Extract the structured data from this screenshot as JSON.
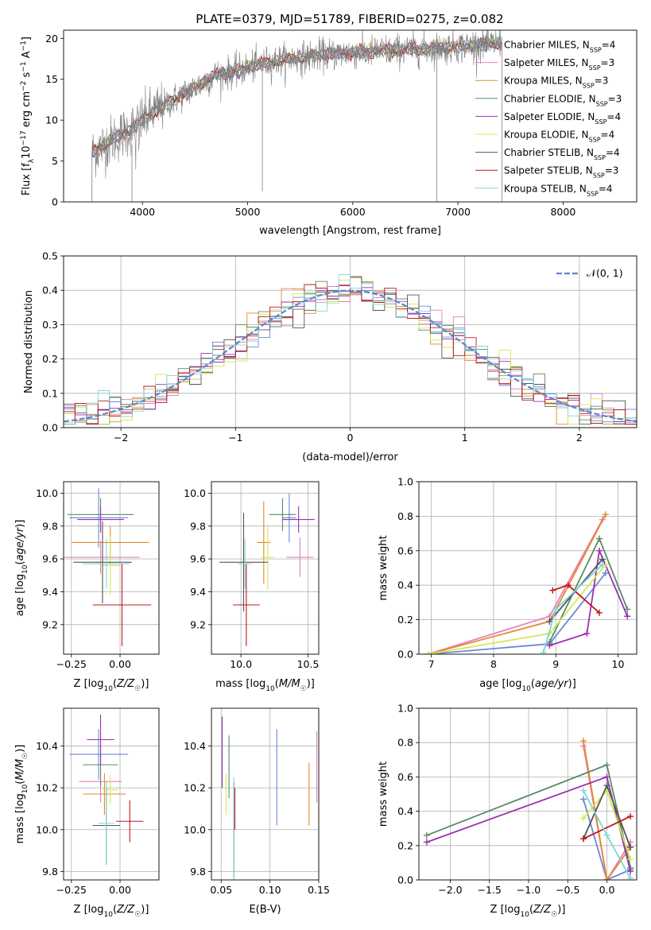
{
  "figure": {
    "title": "PLATE=0379, MJD=51789, FIBERID=0275, z=0.082"
  },
  "colors": {
    "Chabrier MILES": "#6a88d8",
    "Salpeter MILES": "#e87fbf",
    "Kroupa MILES": "#e5892f",
    "Chabrier ELODIE": "#5c8a65",
    "Salpeter ELODIE": "#9b30b0",
    "Kroupa ELODIE": "#d4e855",
    "Chabrier STELIB": "#555555",
    "Salpeter STELIB": "#c01818",
    "Kroupa STELIB": "#7fd6d8"
  },
  "chart_data": [
    {
      "id": "spectrum",
      "type": "line",
      "title": "PLATE=0379, MJD=51789, FIBERID=0275, z=0.082",
      "xlabel": "wavelength [Angstrom, rest frame]",
      "ylabel": "Flux [f_λ10^-17 erg cm^-2 s^-1 A^-1]",
      "xlim": [
        3250,
        8700
      ],
      "ylim": [
        0,
        21
      ],
      "xticks": [
        "4000",
        "5000",
        "6000",
        "7000",
        "8000"
      ],
      "yticks": [
        "0",
        "5",
        "10",
        "15",
        "20"
      ],
      "grid": false,
      "legend_position": "top-right",
      "envelope": {
        "x": [
          3520,
          3700,
          3900,
          4100,
          4300,
          4500,
          4700,
          4900,
          5100,
          5300,
          5500,
          5700,
          5900,
          6100,
          6300,
          6500,
          6700,
          6900,
          7100,
          7300,
          7420
        ],
        "y": [
          6,
          7.5,
          9,
          11,
          12.5,
          14,
          15.5,
          16,
          16.8,
          17.3,
          17.6,
          18,
          18.2,
          18.3,
          18.5,
          18.6,
          18.7,
          18.9,
          19.1,
          19.3,
          19.5
        ]
      },
      "series": [
        {
          "name": "Chabrier MILES",
          "n_ssp": "4"
        },
        {
          "name": "Salpeter MILES",
          "n_ssp": "3"
        },
        {
          "name": "Kroupa MILES",
          "n_ssp": "3"
        },
        {
          "name": "Chabrier ELODIE",
          "n_ssp": "3"
        },
        {
          "name": "Salpeter ELODIE",
          "n_ssp": "4"
        },
        {
          "name": "Kroupa ELODIE",
          "n_ssp": "4"
        },
        {
          "name": "Chabrier STELIB",
          "n_ssp": "4"
        },
        {
          "name": "Salpeter STELIB",
          "n_ssp": "3"
        },
        {
          "name": "Kroupa STELIB",
          "n_ssp": "4"
        }
      ]
    },
    {
      "id": "residuals",
      "type": "histogram",
      "xlabel": "(data-model)/error",
      "ylabel": "Normed distribution",
      "xlim": [
        -2.5,
        2.5
      ],
      "ylim": [
        0,
        0.5
      ],
      "xticks": [
        "−2",
        "−1",
        "0",
        "1",
        "2"
      ],
      "yticks": [
        "0.0",
        "0.1",
        "0.2",
        "0.3",
        "0.4",
        "0.5"
      ],
      "grid": true,
      "legend": "𝒩(0, 1)",
      "legend_position": "top-right",
      "bin_width": 0.1
    },
    {
      "id": "age-z",
      "type": "errorbar",
      "xlabel": "Z [log10(Z/Z☉)]",
      "ylabel": "age  [log10(age/yr)]",
      "xlim": [
        -0.29,
        0.2
      ],
      "ylim": [
        9.02,
        10.07
      ],
      "xticks": [
        "−0.25",
        "0.00"
      ],
      "yticks": [
        "9.2",
        "9.4",
        "9.6",
        "9.8",
        "10.0"
      ],
      "grid": true,
      "points": [
        {
          "series": "Chabrier MILES",
          "x": -0.11,
          "xerr": 0.15,
          "y": 9.85,
          "yerr": 0.18
        },
        {
          "series": "Salpeter MILES",
          "x": -0.1,
          "xerr": 0.2,
          "y": 9.61,
          "yerr": 0.1
        },
        {
          "series": "Kroupa MILES",
          "x": -0.05,
          "xerr": 0.2,
          "y": 9.7,
          "yerr": 0.1
        },
        {
          "series": "Chabrier ELODIE",
          "x": -0.1,
          "xerr": 0.17,
          "y": 9.87,
          "yerr": 0.1
        },
        {
          "series": "Salpeter ELODIE",
          "x": -0.1,
          "xerr": 0.12,
          "y": 9.84,
          "yerr": 0.08
        },
        {
          "series": "Kroupa ELODIE",
          "x": -0.05,
          "xerr": 0.05,
          "y": 9.56,
          "yerr": 0.18
        },
        {
          "series": "Chabrier STELIB",
          "x": -0.09,
          "xerr": 0.15,
          "y": 9.58,
          "yerr": 0.25
        },
        {
          "series": "Salpeter STELIB",
          "x": 0.01,
          "xerr": 0.15,
          "y": 9.32,
          "yerr": 0.25
        },
        {
          "series": "Kroupa STELIB",
          "x": -0.07,
          "xerr": 0.12,
          "y": 9.57,
          "yerr": 0.15
        }
      ]
    },
    {
      "id": "age-mass",
      "type": "errorbar",
      "xlabel": "mass [log10(M/M☉)]",
      "ylabel": "",
      "xlim": [
        9.78,
        10.58
      ],
      "ylim": [
        9.02,
        10.07
      ],
      "xticks": [
        "10.0",
        "10.5"
      ],
      "yticks": [
        "9.2",
        "9.4",
        "9.6",
        "9.8",
        "10.0"
      ],
      "grid": true,
      "points": [
        {
          "series": "Chabrier MILES",
          "x": 10.36,
          "xerr": 0.05,
          "y": 9.85,
          "yerr": 0.15
        },
        {
          "series": "Salpeter MILES",
          "x": 10.44,
          "xerr": 0.1,
          "y": 9.61,
          "yerr": 0.12
        },
        {
          "series": "Kroupa MILES",
          "x": 10.17,
          "xerr": 0.05,
          "y": 9.7,
          "yerr": 0.25
        },
        {
          "series": "Chabrier ELODIE",
          "x": 10.31,
          "xerr": 0.1,
          "y": 9.87,
          "yerr": 0.1
        },
        {
          "series": "Salpeter ELODIE",
          "x": 10.43,
          "xerr": 0.12,
          "y": 9.84,
          "yerr": 0.08
        },
        {
          "series": "Kroupa ELODIE",
          "x": 10.2,
          "xerr": 0.05,
          "y": 9.61,
          "yerr": 0.2
        },
        {
          "series": "Chabrier STELIB",
          "x": 10.02,
          "xerr": 0.18,
          "y": 9.58,
          "yerr": 0.3
        },
        {
          "series": "Salpeter STELIB",
          "x": 10.04,
          "xerr": 0.1,
          "y": 9.32,
          "yerr": 0.25
        },
        {
          "series": "Kroupa STELIB",
          "x": 10.03,
          "xerr": 0.05,
          "y": 9.57,
          "yerr": 0.15
        }
      ]
    },
    {
      "id": "weights-age",
      "type": "line",
      "xlabel": "age  [log10(age/yr)]",
      "ylabel": "mass weight",
      "xlim": [
        6.8,
        10.3
      ],
      "ylim": [
        0,
        1
      ],
      "xticks": [
        "7",
        "8",
        "9",
        "10"
      ],
      "yticks": [
        "0.0",
        "0.2",
        "0.4",
        "0.6",
        "0.8",
        "1.0"
      ],
      "grid": true,
      "series": [
        {
          "name": "Chabrier MILES",
          "x": [
            6.95,
            8.9,
            9.8
          ],
          "y": [
            0.0,
            0.06,
            0.47
          ]
        },
        {
          "name": "Salpeter MILES",
          "x": [
            6.95,
            8.9,
            9.75
          ],
          "y": [
            0.0,
            0.22,
            0.78
          ]
        },
        {
          "name": "Kroupa MILES",
          "x": [
            6.95,
            8.9,
            9.8
          ],
          "y": [
            0.0,
            0.19,
            0.81
          ]
        },
        {
          "name": "Chabrier ELODIE",
          "x": [
            8.9,
            9.7,
            10.15
          ],
          "y": [
            0.07,
            0.67,
            0.26
          ]
        },
        {
          "name": "Salpeter ELODIE",
          "x": [
            8.9,
            9.5,
            9.7,
            10.15
          ],
          "y": [
            0.05,
            0.12,
            0.6,
            0.22
          ]
        },
        {
          "name": "Kroupa ELODIE",
          "x": [
            6.95,
            8.9,
            9.8
          ],
          "y": [
            0.0,
            0.12,
            0.52
          ]
        },
        {
          "name": "Chabrier STELIB",
          "x": [
            8.9,
            9.75
          ],
          "y": [
            0.19,
            0.55
          ]
        },
        {
          "name": "Salpeter STELIB",
          "x": [
            8.95,
            9.2,
            9.7
          ],
          "y": [
            0.37,
            0.4,
            0.24
          ]
        },
        {
          "name": "Kroupa STELIB",
          "x": [
            8.8,
            9.0,
            9.75
          ],
          "y": [
            0.01,
            0.26,
            0.52
          ]
        }
      ]
    },
    {
      "id": "mass-z",
      "type": "errorbar",
      "xlabel": "Z [log10(Z/Z☉)]",
      "ylabel": "mass [log10(M/M☉)]",
      "xlim": [
        -0.29,
        0.2
      ],
      "ylim": [
        9.76,
        10.58
      ],
      "xticks": [
        "−0.25",
        "0.00"
      ],
      "yticks": [
        "9.8",
        "10.0",
        "10.2",
        "10.4"
      ],
      "grid": true,
      "points": [
        {
          "series": "Chabrier MILES",
          "x": -0.11,
          "xerr": 0.15,
          "y": 10.36,
          "yerr": 0.12
        },
        {
          "series": "Salpeter MILES",
          "x": -0.1,
          "xerr": 0.11,
          "y": 10.23,
          "yerr": 0.1
        },
        {
          "series": "Kroupa MILES",
          "x": -0.08,
          "xerr": 0.11,
          "y": 10.17,
          "yerr": 0.1
        },
        {
          "series": "Chabrier ELODIE",
          "x": -0.1,
          "xerr": 0.09,
          "y": 10.31,
          "yerr": 0.1
        },
        {
          "series": "Salpeter ELODIE",
          "x": -0.1,
          "xerr": 0.07,
          "y": 10.43,
          "yerr": 0.12
        },
        {
          "series": "Kroupa ELODIE",
          "x": -0.05,
          "xerr": 0.04,
          "y": 10.19,
          "yerr": 0.07
        },
        {
          "series": "Chabrier STELIB",
          "x": -0.07,
          "xerr": 0.07,
          "y": 10.02,
          "yerr": 0.18
        },
        {
          "series": "Salpeter STELIB",
          "x": 0.05,
          "xerr": 0.07,
          "y": 10.04,
          "yerr": 0.1
        },
        {
          "series": "Kroupa STELIB",
          "x": -0.07,
          "xerr": 0.04,
          "y": 10.03,
          "yerr": 0.2
        }
      ]
    },
    {
      "id": "ebv",
      "type": "errorbar",
      "xlabel": "E(B-V)",
      "ylabel": "",
      "xlim": [
        0.04,
        0.15
      ],
      "ylim": [
        9.76,
        10.58
      ],
      "xticks": [
        "0.05",
        "0.10",
        "0.15"
      ],
      "yticks": [
        "9.8",
        "10.0",
        "10.2",
        "10.4"
      ],
      "grid": true,
      "points": [
        {
          "series": "Chabrier MILES",
          "x": 0.107,
          "y": 10.25,
          "yerr": 0.23
        },
        {
          "series": "Salpeter MILES",
          "x": 0.148,
          "y": 10.3,
          "yerr": 0.17
        },
        {
          "series": "Kroupa MILES",
          "x": 0.14,
          "y": 10.17,
          "yerr": 0.15
        },
        {
          "series": "Chabrier ELODIE",
          "x": 0.058,
          "y": 10.3,
          "yerr": 0.15
        },
        {
          "series": "Salpeter ELODIE",
          "x": 0.051,
          "y": 10.37,
          "yerr": 0.17
        },
        {
          "series": "Kroupa ELODIE",
          "x": 0.055,
          "y": 10.17,
          "yerr": 0.1
        },
        {
          "series": "Chabrier STELIB",
          "x": 0.063,
          "y": 10.0,
          "yerr": 0.23
        },
        {
          "series": "Salpeter STELIB",
          "x": 0.064,
          "y": 10.1,
          "yerr": 0.1
        },
        {
          "series": "Kroupa STELIB",
          "x": 0.063,
          "y": 10.0,
          "yerr": 0.25
        }
      ]
    },
    {
      "id": "weights-z",
      "type": "line",
      "xlabel": "Z [log10(Z/Z☉)]",
      "ylabel": "mass weight",
      "xlim": [
        -2.4,
        0.38
      ],
      "ylim": [
        0,
        1
      ],
      "xticks": [
        "−2.0",
        "−1.5",
        "−1.0",
        "−0.5",
        "0.0"
      ],
      "yticks": [
        "0.0",
        "0.2",
        "0.4",
        "0.6",
        "0.8",
        "1.0"
      ],
      "grid": true,
      "series": [
        {
          "name": "Chabrier MILES",
          "x": [
            -0.3,
            0.0,
            0.3
          ],
          "y": [
            0.47,
            0.0,
            0.06
          ]
        },
        {
          "name": "Salpeter MILES",
          "x": [
            -0.3,
            0.0,
            0.3
          ],
          "y": [
            0.78,
            0.0,
            0.22
          ]
        },
        {
          "name": "Kroupa MILES",
          "x": [
            -0.3,
            0.0,
            0.3
          ],
          "y": [
            0.81,
            0.0,
            0.19
          ]
        },
        {
          "name": "Chabrier ELODIE",
          "x": [
            -2.3,
            0.0,
            0.3
          ],
          "y": [
            0.26,
            0.67,
            0.07
          ]
        },
        {
          "name": "Salpeter ELODIE",
          "x": [
            -2.3,
            0.0,
            0.3
          ],
          "y": [
            0.22,
            0.6,
            0.05
          ]
        },
        {
          "name": "Kroupa ELODIE",
          "x": [
            -0.3,
            0.0,
            0.3
          ],
          "y": [
            0.36,
            0.52,
            0.12
          ]
        },
        {
          "name": "Chabrier STELIB",
          "x": [
            -0.3,
            0.0,
            0.3
          ],
          "y": [
            0.24,
            0.55,
            0.19
          ]
        },
        {
          "name": "Salpeter STELIB",
          "x": [
            -0.3,
            0.3
          ],
          "y": [
            0.24,
            0.37
          ]
        },
        {
          "name": "Kroupa STELIB",
          "x": [
            -0.3,
            0.0,
            0.3
          ],
          "y": [
            0.52,
            0.26,
            0.01
          ]
        }
      ]
    }
  ]
}
